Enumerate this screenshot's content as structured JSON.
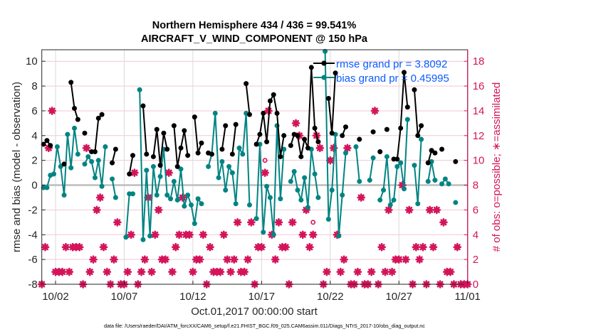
{
  "chart_data": {
    "type": "line",
    "title": [
      "Northern Hemisphere 434 / 436 = 99.541%",
      "AIRCRAFT_V_WIND_COMPONENT @ 150 hPa"
    ],
    "xlabel": "Oct.01,2017 00:00:00 start",
    "ylabel": "rmse and bias (model - observation)",
    "ylabel_right": "# of obs: o=possible; ∗=assimilated",
    "footer": "data file: /Users/raeder/DAI/ATM_forcXX/CAM6_setup/f.e21.FHIST_BGC.f09_025.CAM6assim.011/Diags_NTrS_2017-10/obs_diag_output.nc",
    "x_unit": "days since Oct.01,2017 00:00",
    "xlim": [
      0,
      31
    ],
    "ylim": [
      -8,
      10.93
    ],
    "ylim_right": [
      0,
      18.93
    ],
    "x_ticks": [
      {
        "day": 1,
        "label": "10/02"
      },
      {
        "day": 6,
        "label": "10/07"
      },
      {
        "day": 11,
        "label": "10/12"
      },
      {
        "day": 16,
        "label": "10/17"
      },
      {
        "day": 21,
        "label": "10/22"
      },
      {
        "day": 26,
        "label": "10/27"
      },
      {
        "day": 31,
        "label": "11/01"
      }
    ],
    "y_ticks": [
      "-8",
      "-6",
      "-4",
      "-2",
      "0",
      "2",
      "4",
      "6",
      "8",
      "10"
    ],
    "y_ticks_right": [
      "0",
      "2",
      "4",
      "6",
      "8",
      "10",
      "12",
      "14",
      "16",
      "18"
    ],
    "grid": true,
    "legend_position": "top-right",
    "bin_step_days": 0.25,
    "series": [
      {
        "name": "rmse",
        "legend": "rmse grand pr = 3.8092",
        "color": "#000000",
        "axis": "left",
        "values": [
          3.3,
          3.6,
          3.2,
          null,
          null,
          null,
          1.7,
          null,
          8.3,
          6.2,
          5.3,
          null,
          4.2,
          null,
          2.7,
          2.7,
          5.4,
          5.7,
          null,
          null,
          1.8,
          2.9,
          null,
          null,
          null,
          0.9,
          2.4,
          null,
          null,
          6.4,
          2.5,
          null,
          2.3,
          4.5,
          1.6,
          4.2,
          2.9,
          null,
          4.8,
          1.5,
          3.0,
          4.4,
          2.4,
          null,
          5.5,
          2.6,
          3.4,
          null,
          2.6,
          2.5,
          null,
          null,
          2.9,
          4.8,
          null,
          2.5,
          4.9,
          null,
          null,
          8.2,
          5.7,
          null,
          3.3,
          4.1,
          5.8,
          3.5,
          6.8,
          7.3,
          5.8,
          2.3,
          4.0,
          null,
          3.2,
          4.1,
          4.0,
          2.3,
          3.7,
          3.0,
          9.5,
          4.6,
          3.5,
          null,
          null,
          7.0,
          4.2,
          9.05,
          null,
          4.0,
          4.7,
          null,
          null,
          null,
          3.7,
          null,
          null,
          null,
          4.3,
          null,
          2.7,
          null,
          4.5,
          null,
          2.1,
          2.1,
          4.6,
          9.1,
          6.3,
          null,
          7.7,
          4.0,
          4.8,
          null,
          1.8,
          2.8,
          2.6,
          null,
          2.9,
          null,
          null,
          null,
          1.9,
          null,
          null,
          null
        ]
      },
      {
        "name": "bias",
        "legend": "bias grand pr = 0.45995",
        "color": "#008482",
        "axis": "left",
        "values": [
          -0.2,
          -0.2,
          0.8,
          0.9,
          3.1,
          1.5,
          -0.8,
          4.1,
          1.4,
          4.6,
          2.5,
          null,
          1.7,
          2.3,
          1.9,
          0.6,
          2.0,
          -0.1,
          3.1,
          null,
          0.5,
          -1.0,
          null,
          null,
          -4.2,
          -0.7,
          -0.7,
          null,
          7.7,
          -4.4,
          1.2,
          -4.1,
          1.5,
          -0.8,
          0.7,
          2.9,
          -0.8,
          -1.1,
          0.3,
          -1.2,
          1.3,
          -1.7,
          -0.8,
          -1.6,
          -3.1,
          -1.1,
          -1.5,
          null,
          1.5,
          2.5,
          5.8,
          0.6,
          1.9,
          -0.4,
          1.5,
          1.0,
          -1.5,
          3.0,
          2.5,
          5.8,
          -1.6,
          null,
          -2.7,
          3.3,
          -3.8,
          -0.1,
          -1.0,
          -4.0,
          4.8,
          -1.1,
          2.9,
          null,
          0.3,
          1.1,
          -0.4,
          -1.2,
          0.6,
          -1.8,
          2.9,
          0.9,
          -1.0,
          null,
          10.8,
          -2.75,
          -0.4,
          4.1,
          -4.1,
          -0.8,
          2.6,
          null,
          null,
          3.1,
          0.3,
          null,
          null,
          0.4,
          2.2,
          null,
          -1.2,
          -0.4,
          2.3,
          -1.6,
          -1.2,
          1.5,
          1.8,
          -0.3,
          5.3,
          null,
          1.6,
          -1.5,
          3.7,
          null,
          0.3,
          1.9,
          0.4,
          null,
          0.1,
          0.5,
          0.1,
          null,
          -1.4,
          null,
          null,
          null
        ]
      },
      {
        "name": "obs possible",
        "color": "#d4145a",
        "axis": "right",
        "marker": "o",
        "values": [
          0,
          3,
          11,
          14,
          1,
          1,
          1,
          3,
          1,
          3,
          3,
          3,
          0,
          11,
          1,
          2,
          6,
          7,
          3,
          1,
          0,
          2,
          5,
          0,
          0,
          1,
          4,
          9,
          0,
          1,
          2,
          7,
          1,
          4,
          6,
          2,
          2,
          9,
          1,
          3,
          4,
          7,
          4,
          4,
          1,
          2,
          2,
          4,
          0,
          3,
          1,
          1,
          1,
          4,
          2,
          1,
          2,
          5,
          1,
          1,
          2,
          5,
          0,
          3,
          3,
          10,
          14,
          4,
          2,
          5,
          3,
          3,
          0,
          5,
          13,
          12,
          4,
          6,
          3,
          5,
          12,
          11,
          0,
          1,
          10,
          11,
          4,
          1,
          2,
          11,
          0,
          0,
          1,
          7,
          0,
          0,
          1,
          14,
          0,
          3,
          1,
          6,
          1,
          2,
          2,
          8,
          2,
          6,
          0,
          3,
          2,
          3,
          0,
          6,
          3,
          6,
          0,
          5,
          1,
          1,
          0,
          3,
          0,
          0,
          0
        ]
      },
      {
        "name": "obs assimilated",
        "color": "#d4145a",
        "axis": "right",
        "marker": "*",
        "values": [
          0,
          3,
          11,
          14,
          1,
          1,
          1,
          3,
          1,
          3,
          3,
          3,
          0,
          11,
          1,
          2,
          6,
          7,
          3,
          1,
          0,
          2,
          5,
          0,
          0,
          1,
          4,
          9,
          0,
          1,
          2,
          7,
          1,
          4,
          6,
          2,
          2,
          9,
          1,
          3,
          4,
          7,
          4,
          4,
          1,
          2,
          2,
          4,
          0,
          3,
          1,
          1,
          1,
          4,
          2,
          1,
          2,
          5,
          1,
          1,
          2,
          5,
          0,
          3,
          3,
          9,
          14,
          4,
          2,
          5,
          3,
          3,
          0,
          5,
          13,
          12,
          4,
          6,
          3,
          4,
          12,
          11,
          0,
          1,
          10,
          11,
          4,
          1,
          2,
          11,
          0,
          0,
          1,
          7,
          0,
          0,
          1,
          14,
          0,
          3,
          1,
          6,
          1,
          2,
          2,
          8,
          2,
          6,
          0,
          3,
          2,
          3,
          0,
          6,
          3,
          6,
          0,
          5,
          1,
          1,
          0,
          3,
          0,
          0,
          0
        ]
      }
    ]
  },
  "colors": {
    "legend_text": "#0b5bff",
    "grid_h": "#f3c6d6",
    "grid_v": "#d9d9d9",
    "zero_line": "#bdbdbd"
  }
}
